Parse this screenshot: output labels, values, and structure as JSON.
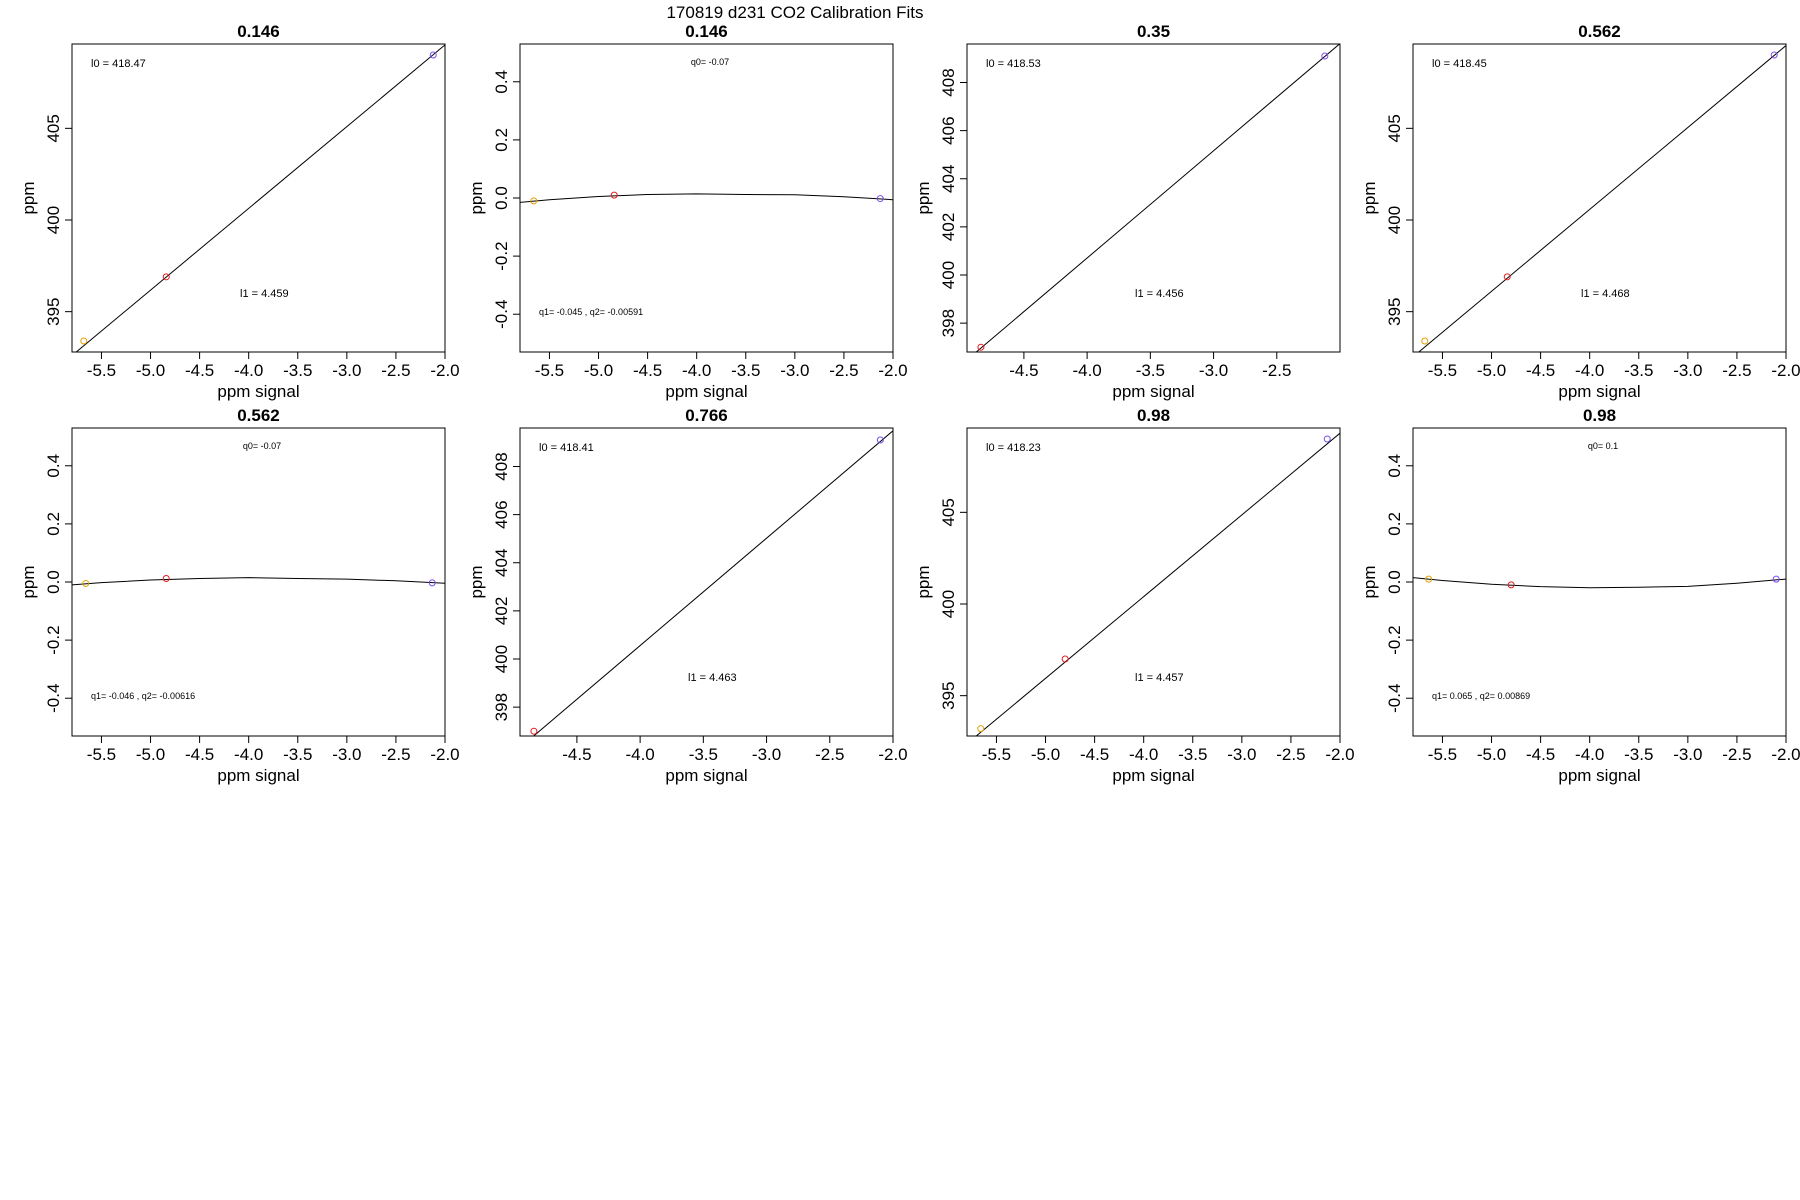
{
  "page_title": "170819   d231   CO2 Calibration Fits",
  "chart_data": [
    {
      "type": "scatter",
      "title": "0.146",
      "xlabel": "ppm signal",
      "ylabel": "ppm",
      "xlim": [
        -5.8,
        -2.0
      ],
      "ylim": [
        392.8,
        409.6
      ],
      "xticks": [
        "-5.5",
        "-5.0",
        "-4.5",
        "-4.0",
        "-3.5",
        "-3.0",
        "-2.5",
        "-2.0"
      ],
      "yticks": [
        "395",
        "400",
        "405"
      ],
      "points": [
        {
          "x": -5.68,
          "y": 393.4,
          "color": "#e69f00"
        },
        {
          "x": -4.84,
          "y": 396.9,
          "color": "#e41a1c"
        },
        {
          "x": -2.12,
          "y": 409.0,
          "color": "#7b4cf0"
        }
      ],
      "fit_line": {
        "slope": 4.459,
        "intercept": 418.47
      },
      "annotations": [
        "l0 =  418.47",
        "l1 =  4.459"
      ]
    },
    {
      "type": "scatter",
      "title": "0.146",
      "xlabel": "ppm signal",
      "ylabel": "ppm",
      "xlim": [
        -5.8,
        -2.0
      ],
      "ylim": [
        -0.53,
        0.53
      ],
      "xticks": [
        "-5.5",
        "-5.0",
        "-4.5",
        "-4.0",
        "-3.5",
        "-3.0",
        "-2.5",
        "-2.0"
      ],
      "yticks": [
        "-0.4",
        "-0.2",
        "0.0",
        "0.2",
        "0.4"
      ],
      "points": [
        {
          "x": -5.66,
          "y": -0.01,
          "color": "#e69f00"
        },
        {
          "x": -4.84,
          "y": 0.01,
          "color": "#e41a1c"
        },
        {
          "x": -2.13,
          "y": -0.002,
          "color": "#7b4cf0"
        }
      ],
      "curve": [
        [
          -5.8,
          -0.015
        ],
        [
          -5.5,
          -0.006
        ],
        [
          -5.0,
          0.005
        ],
        [
          -4.5,
          0.012
        ],
        [
          -4.0,
          0.014
        ],
        [
          -3.5,
          0.012
        ],
        [
          -3.0,
          0.011
        ],
        [
          -2.5,
          0.004
        ],
        [
          -2.0,
          -0.006
        ]
      ],
      "annotations": [
        "q0= -0.07",
        "q1= -0.045 , q2= -0.00591"
      ]
    },
    {
      "type": "scatter",
      "title": "0.35",
      "xlabel": "ppm signal",
      "ylabel": "ppm",
      "xlim": [
        -4.95,
        -2.0
      ],
      "ylim": [
        396.8,
        409.6
      ],
      "xticks": [
        "-4.5",
        "-4.0",
        "-3.5",
        "-3.0",
        "-2.5"
      ],
      "yticks": [
        "398",
        "400",
        "402",
        "404",
        "406",
        "408"
      ],
      "points": [
        {
          "x": -4.84,
          "y": 397.0,
          "color": "#e41a1c"
        },
        {
          "x": -2.12,
          "y": 409.1,
          "color": "#7b4cf0"
        }
      ],
      "fit_line": {
        "slope": 4.456,
        "intercept": 418.53
      },
      "annotations": [
        "l0 =  418.53",
        "l1 =  4.456"
      ]
    },
    {
      "type": "scatter",
      "title": "0.562",
      "xlabel": "ppm signal",
      "ylabel": "ppm",
      "xlim": [
        -5.8,
        -2.0
      ],
      "ylim": [
        392.8,
        409.6
      ],
      "xticks": [
        "-5.5",
        "-5.0",
        "-4.5",
        "-4.0",
        "-3.5",
        "-3.0",
        "-2.5",
        "-2.0"
      ],
      "yticks": [
        "395",
        "400",
        "405"
      ],
      "points": [
        {
          "x": -5.68,
          "y": 393.4,
          "color": "#e69f00"
        },
        {
          "x": -4.84,
          "y": 396.9,
          "color": "#e41a1c"
        },
        {
          "x": -2.12,
          "y": 409.0,
          "color": "#7b4cf0"
        }
      ],
      "fit_line": {
        "slope": 4.468,
        "intercept": 418.45
      },
      "annotations": [
        "l0 =  418.45",
        "l1 =  4.468"
      ]
    },
    {
      "type": "scatter",
      "title": "0.562",
      "xlabel": "ppm signal",
      "ylabel": "ppm",
      "xlim": [
        -5.8,
        -2.0
      ],
      "ylim": [
        -0.53,
        0.53
      ],
      "xticks": [
        "-5.5",
        "-5.0",
        "-4.5",
        "-4.0",
        "-3.5",
        "-3.0",
        "-2.5",
        "-2.0"
      ],
      "yticks": [
        "-0.4",
        "-0.2",
        "0.0",
        "0.2",
        "0.4"
      ],
      "points": [
        {
          "x": -5.66,
          "y": -0.005,
          "color": "#e69f00"
        },
        {
          "x": -4.84,
          "y": 0.012,
          "color": "#e41a1c"
        },
        {
          "x": -2.13,
          "y": -0.003,
          "color": "#7b4cf0"
        }
      ],
      "curve": [
        [
          -5.8,
          -0.01
        ],
        [
          -5.5,
          -0.002
        ],
        [
          -5.0,
          0.007
        ],
        [
          -4.5,
          0.012
        ],
        [
          -4.0,
          0.015
        ],
        [
          -3.5,
          0.012
        ],
        [
          -3.0,
          0.01
        ],
        [
          -2.5,
          0.004
        ],
        [
          -2.0,
          -0.004
        ]
      ],
      "annotations": [
        "q0= -0.07",
        "q1= -0.046 , q2= -0.00616"
      ]
    },
    {
      "type": "scatter",
      "title": "0.766",
      "xlabel": "ppm signal",
      "ylabel": "ppm",
      "xlim": [
        -4.95,
        -2.0
      ],
      "ylim": [
        396.8,
        409.6
      ],
      "xticks": [
        "-4.5",
        "-4.0",
        "-3.5",
        "-3.0",
        "-2.5",
        "-2.0"
      ],
      "yticks": [
        "398",
        "400",
        "402",
        "404",
        "406",
        "408"
      ],
      "points": [
        {
          "x": -4.84,
          "y": 397.0,
          "color": "#e41a1c"
        },
        {
          "x": -2.1,
          "y": 409.1,
          "color": "#7b4cf0"
        }
      ],
      "fit_line": {
        "slope": 4.463,
        "intercept": 418.41
      },
      "annotations": [
        "l0 =  418.41",
        "l1 =  4.463"
      ]
    },
    {
      "type": "scatter",
      "title": "0.98",
      "xlabel": "ppm signal",
      "ylabel": "ppm",
      "xlim": [
        -5.8,
        -2.0
      ],
      "ylim": [
        392.8,
        409.6
      ],
      "xticks": [
        "-5.5",
        "-5.0",
        "-4.5",
        "-4.0",
        "-3.5",
        "-3.0",
        "-2.5",
        "-2.0"
      ],
      "yticks": [
        "395",
        "400",
        "405"
      ],
      "points": [
        {
          "x": -5.66,
          "y": 393.2,
          "color": "#e69f00"
        },
        {
          "x": -4.8,
          "y": 397.0,
          "color": "#e41a1c"
        },
        {
          "x": -2.13,
          "y": 409.0,
          "color": "#7b4cf0"
        }
      ],
      "fit_line": {
        "slope": 4.457,
        "intercept": 418.23
      },
      "annotations": [
        "l0 =  418.23",
        "l1 =  4.457"
      ]
    },
    {
      "type": "scatter",
      "title": "0.98",
      "xlabel": "ppm signal",
      "ylabel": "ppm",
      "xlim": [
        -5.8,
        -2.0
      ],
      "ylim": [
        -0.53,
        0.53
      ],
      "xticks": [
        "-5.5",
        "-5.0",
        "-4.5",
        "-4.0",
        "-3.5",
        "-3.0",
        "-2.5",
        "-2.0"
      ],
      "yticks": [
        "-0.4",
        "-0.2",
        "0.0",
        "0.2",
        "0.4"
      ],
      "points": [
        {
          "x": -5.64,
          "y": 0.01,
          "color": "#e69f00"
        },
        {
          "x": -4.8,
          "y": -0.01,
          "color": "#e41a1c"
        },
        {
          "x": -2.1,
          "y": 0.01,
          "color": "#7b4cf0"
        }
      ],
      "curve": [
        [
          -5.8,
          0.015
        ],
        [
          -5.5,
          0.005
        ],
        [
          -5.0,
          -0.008
        ],
        [
          -4.5,
          -0.016
        ],
        [
          -4.0,
          -0.02
        ],
        [
          -3.5,
          -0.018
        ],
        [
          -3.0,
          -0.015
        ],
        [
          -2.5,
          -0.004
        ],
        [
          -2.0,
          0.01
        ]
      ],
      "annotations": [
        "q0= 0.1",
        "q1= 0.065 , q2= 0.00869"
      ]
    }
  ]
}
